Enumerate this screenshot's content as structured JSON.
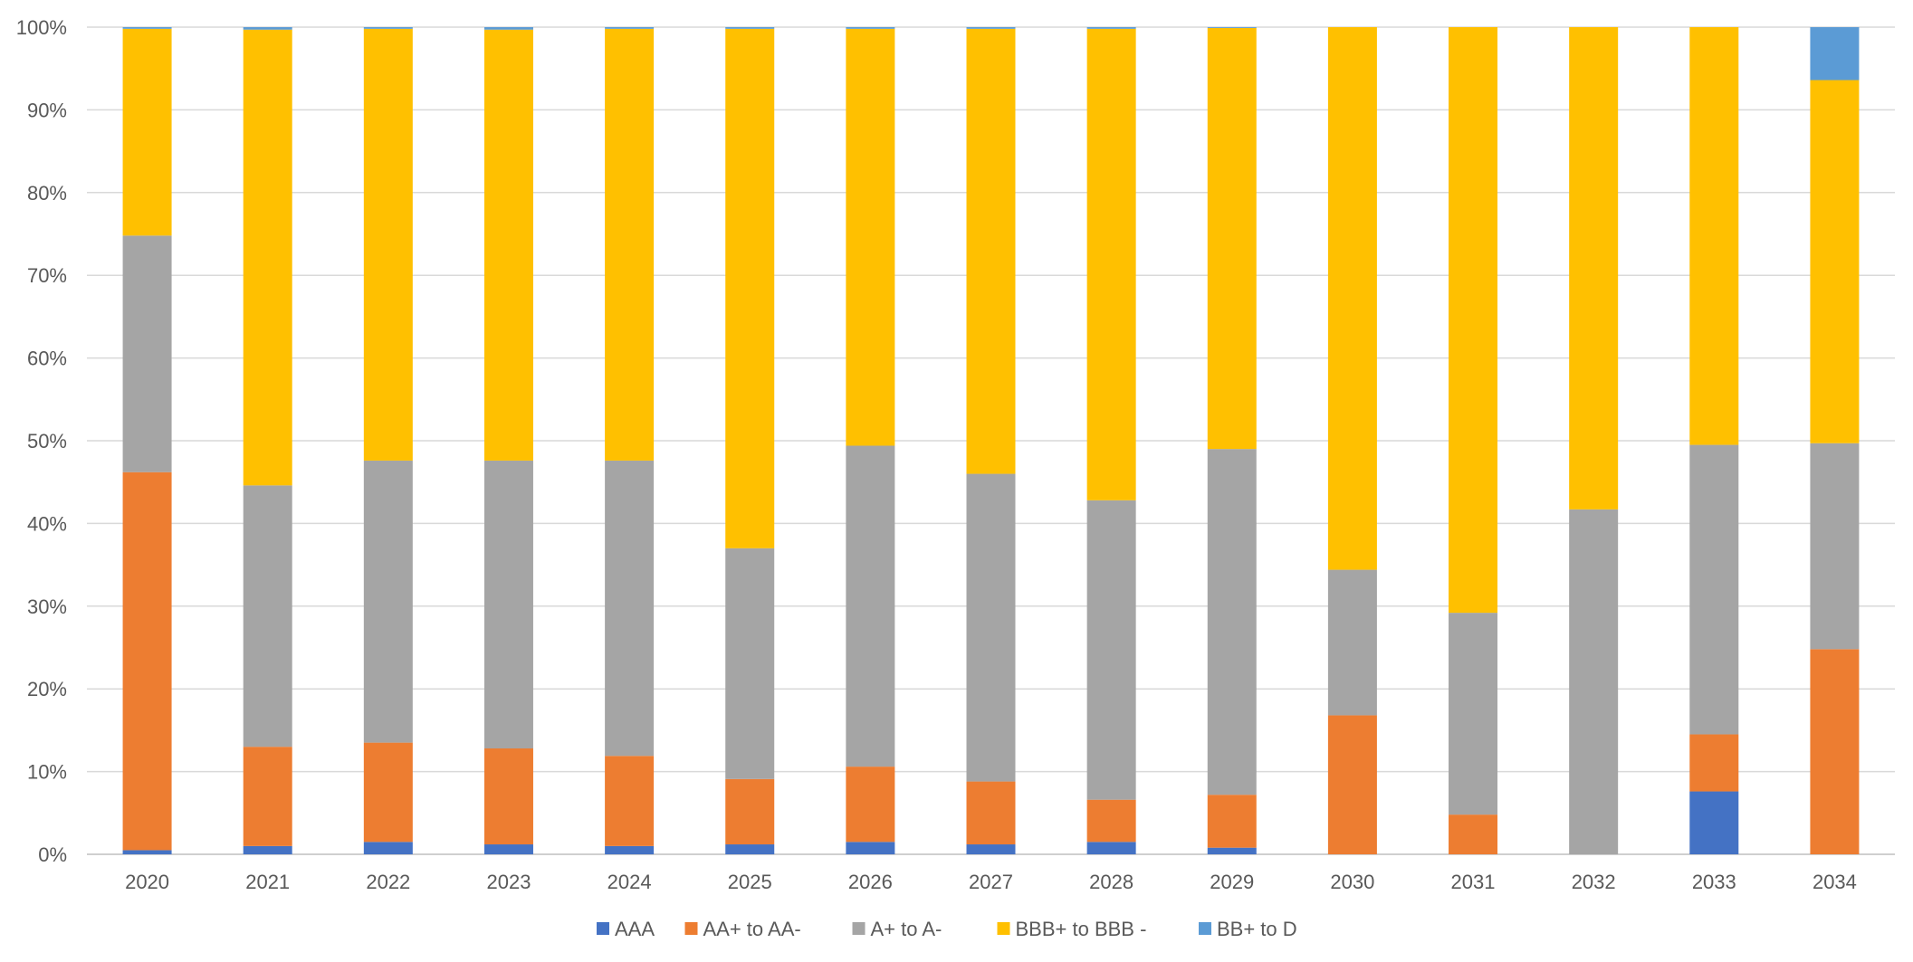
{
  "chart_data": {
    "type": "bar",
    "stacked": true,
    "percent_stacked": true,
    "categories": [
      "2020",
      "2021",
      "2022",
      "2023",
      "2024",
      "2025",
      "2026",
      "2027",
      "2028",
      "2029",
      "2030",
      "2031",
      "2032",
      "2033",
      "2034"
    ],
    "series": [
      {
        "name": "AAA",
        "color": "#4472C4",
        "values": [
          0.5,
          1.0,
          1.5,
          1.2,
          1.0,
          1.2,
          1.5,
          1.2,
          1.5,
          0.8,
          0.0,
          0.0,
          0.0,
          7.6,
          0.0
        ]
      },
      {
        "name": "AA+ to AA-",
        "color": "#ED7D31",
        "values": [
          45.7,
          12.0,
          12.0,
          11.6,
          10.9,
          7.9,
          9.1,
          7.6,
          5.1,
          6.4,
          16.8,
          4.8,
          0.0,
          6.9,
          24.8
        ]
      },
      {
        "name": "A+ to A-",
        "color": "#A5A5A5",
        "values": [
          28.6,
          31.6,
          34.1,
          34.8,
          35.7,
          27.9,
          38.8,
          37.2,
          36.2,
          41.8,
          17.6,
          24.4,
          41.7,
          35.0,
          24.9
        ]
      },
      {
        "name": "BBB+ to BBB -",
        "color": "#FFC000",
        "values": [
          25.0,
          55.1,
          52.2,
          52.1,
          52.2,
          62.8,
          50.4,
          53.8,
          57.0,
          50.9,
          65.6,
          70.8,
          58.3,
          50.5,
          43.9
        ]
      },
      {
        "name": "BB+ to D",
        "color": "#5B9BD5",
        "values": [
          0.2,
          0.3,
          0.2,
          0.3,
          0.2,
          0.2,
          0.2,
          0.2,
          0.2,
          0.1,
          0.0,
          0.0,
          0.0,
          0.0,
          6.4
        ]
      }
    ],
    "y_ticks": [
      "0%",
      "10%",
      "20%",
      "30%",
      "40%",
      "50%",
      "60%",
      "70%",
      "80%",
      "90%",
      "100%"
    ],
    "ylim": [
      0,
      100
    ],
    "grid": true,
    "legend_position": "bottom",
    "title": "",
    "xlabel": "",
    "ylabel": ""
  }
}
